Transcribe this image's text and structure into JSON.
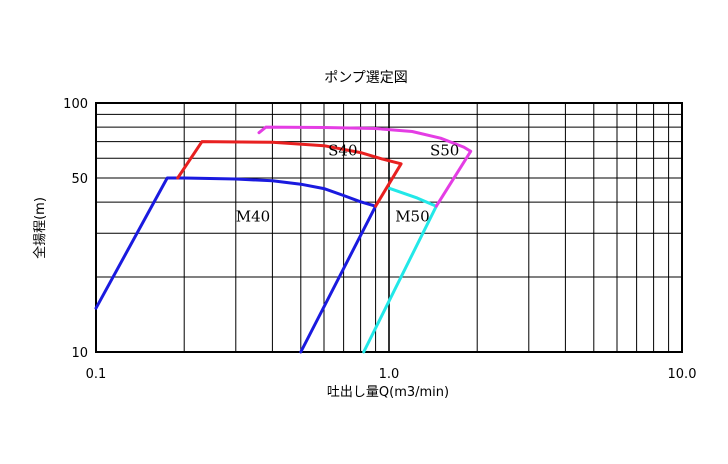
{
  "chart_data": {
    "type": "line",
    "title": "ポンプ選定図",
    "xlabel": "吐出し量Q(m3/min)",
    "ylabel": "全揚程(m)",
    "x_scale": "log",
    "y_scale": "log",
    "xlim": [
      0.1,
      10.0
    ],
    "ylim": [
      10,
      100
    ],
    "x_tick_labels": [
      {
        "value": 0.1,
        "label": "0.1"
      },
      {
        "value": 1.0,
        "label": "1.0"
      },
      {
        "value": 10.0,
        "label": "10.0"
      }
    ],
    "y_tick_labels": [
      {
        "value": 100,
        "label": "100"
      },
      {
        "value": 50,
        "label": "50"
      },
      {
        "value": 10,
        "label": "10"
      }
    ],
    "grid": true,
    "series": [
      {
        "name": "M40",
        "color": "#1a1adf",
        "label_at": {
          "x": 0.3,
          "y": 33.5
        },
        "points": [
          {
            "x": 0.1,
            "y": 15
          },
          {
            "x": 0.175,
            "y": 50
          },
          {
            "x": 0.2,
            "y": 50
          },
          {
            "x": 0.3,
            "y": 49.5
          },
          {
            "x": 0.4,
            "y": 48.7
          },
          {
            "x": 0.5,
            "y": 47.2
          },
          {
            "x": 0.6,
            "y": 45.3
          },
          {
            "x": 0.7,
            "y": 42.5
          },
          {
            "x": 0.8,
            "y": 40.1
          },
          {
            "x": 0.9,
            "y": 38.5
          },
          {
            "x": 0.5,
            "y": 10
          }
        ]
      },
      {
        "name": "M50",
        "color": "#22e8e8",
        "label_at": {
          "x": 1.05,
          "y": 33.5
        },
        "points": [
          {
            "x": 1.0,
            "y": 45.5
          },
          {
            "x": 1.25,
            "y": 41.5
          },
          {
            "x": 1.45,
            "y": 38.5
          },
          {
            "x": 0.82,
            "y": 10
          }
        ]
      },
      {
        "name": "S40",
        "color": "#e82020",
        "label_at": {
          "x": 0.62,
          "y": 61.5
        },
        "points": [
          {
            "x": 0.19,
            "y": 50
          },
          {
            "x": 0.23,
            "y": 70
          },
          {
            "x": 0.4,
            "y": 69.5
          },
          {
            "x": 0.6,
            "y": 67.4
          },
          {
            "x": 0.8,
            "y": 63.2
          },
          {
            "x": 0.95,
            "y": 59.5
          },
          {
            "x": 1.1,
            "y": 57
          },
          {
            "x": 0.9,
            "y": 38.5
          }
        ]
      },
      {
        "name": "S50",
        "color": "#e43de4",
        "label_at": {
          "x": 1.38,
          "y": 61.5
        },
        "points": [
          {
            "x": 0.36,
            "y": 76
          },
          {
            "x": 0.38,
            "y": 80
          },
          {
            "x": 0.6,
            "y": 79.7
          },
          {
            "x": 0.9,
            "y": 79
          },
          {
            "x": 1.2,
            "y": 76.8
          },
          {
            "x": 1.5,
            "y": 72.2
          },
          {
            "x": 1.8,
            "y": 66.5
          },
          {
            "x": 1.9,
            "y": 64
          },
          {
            "x": 1.45,
            "y": 38.5
          }
        ]
      }
    ]
  }
}
